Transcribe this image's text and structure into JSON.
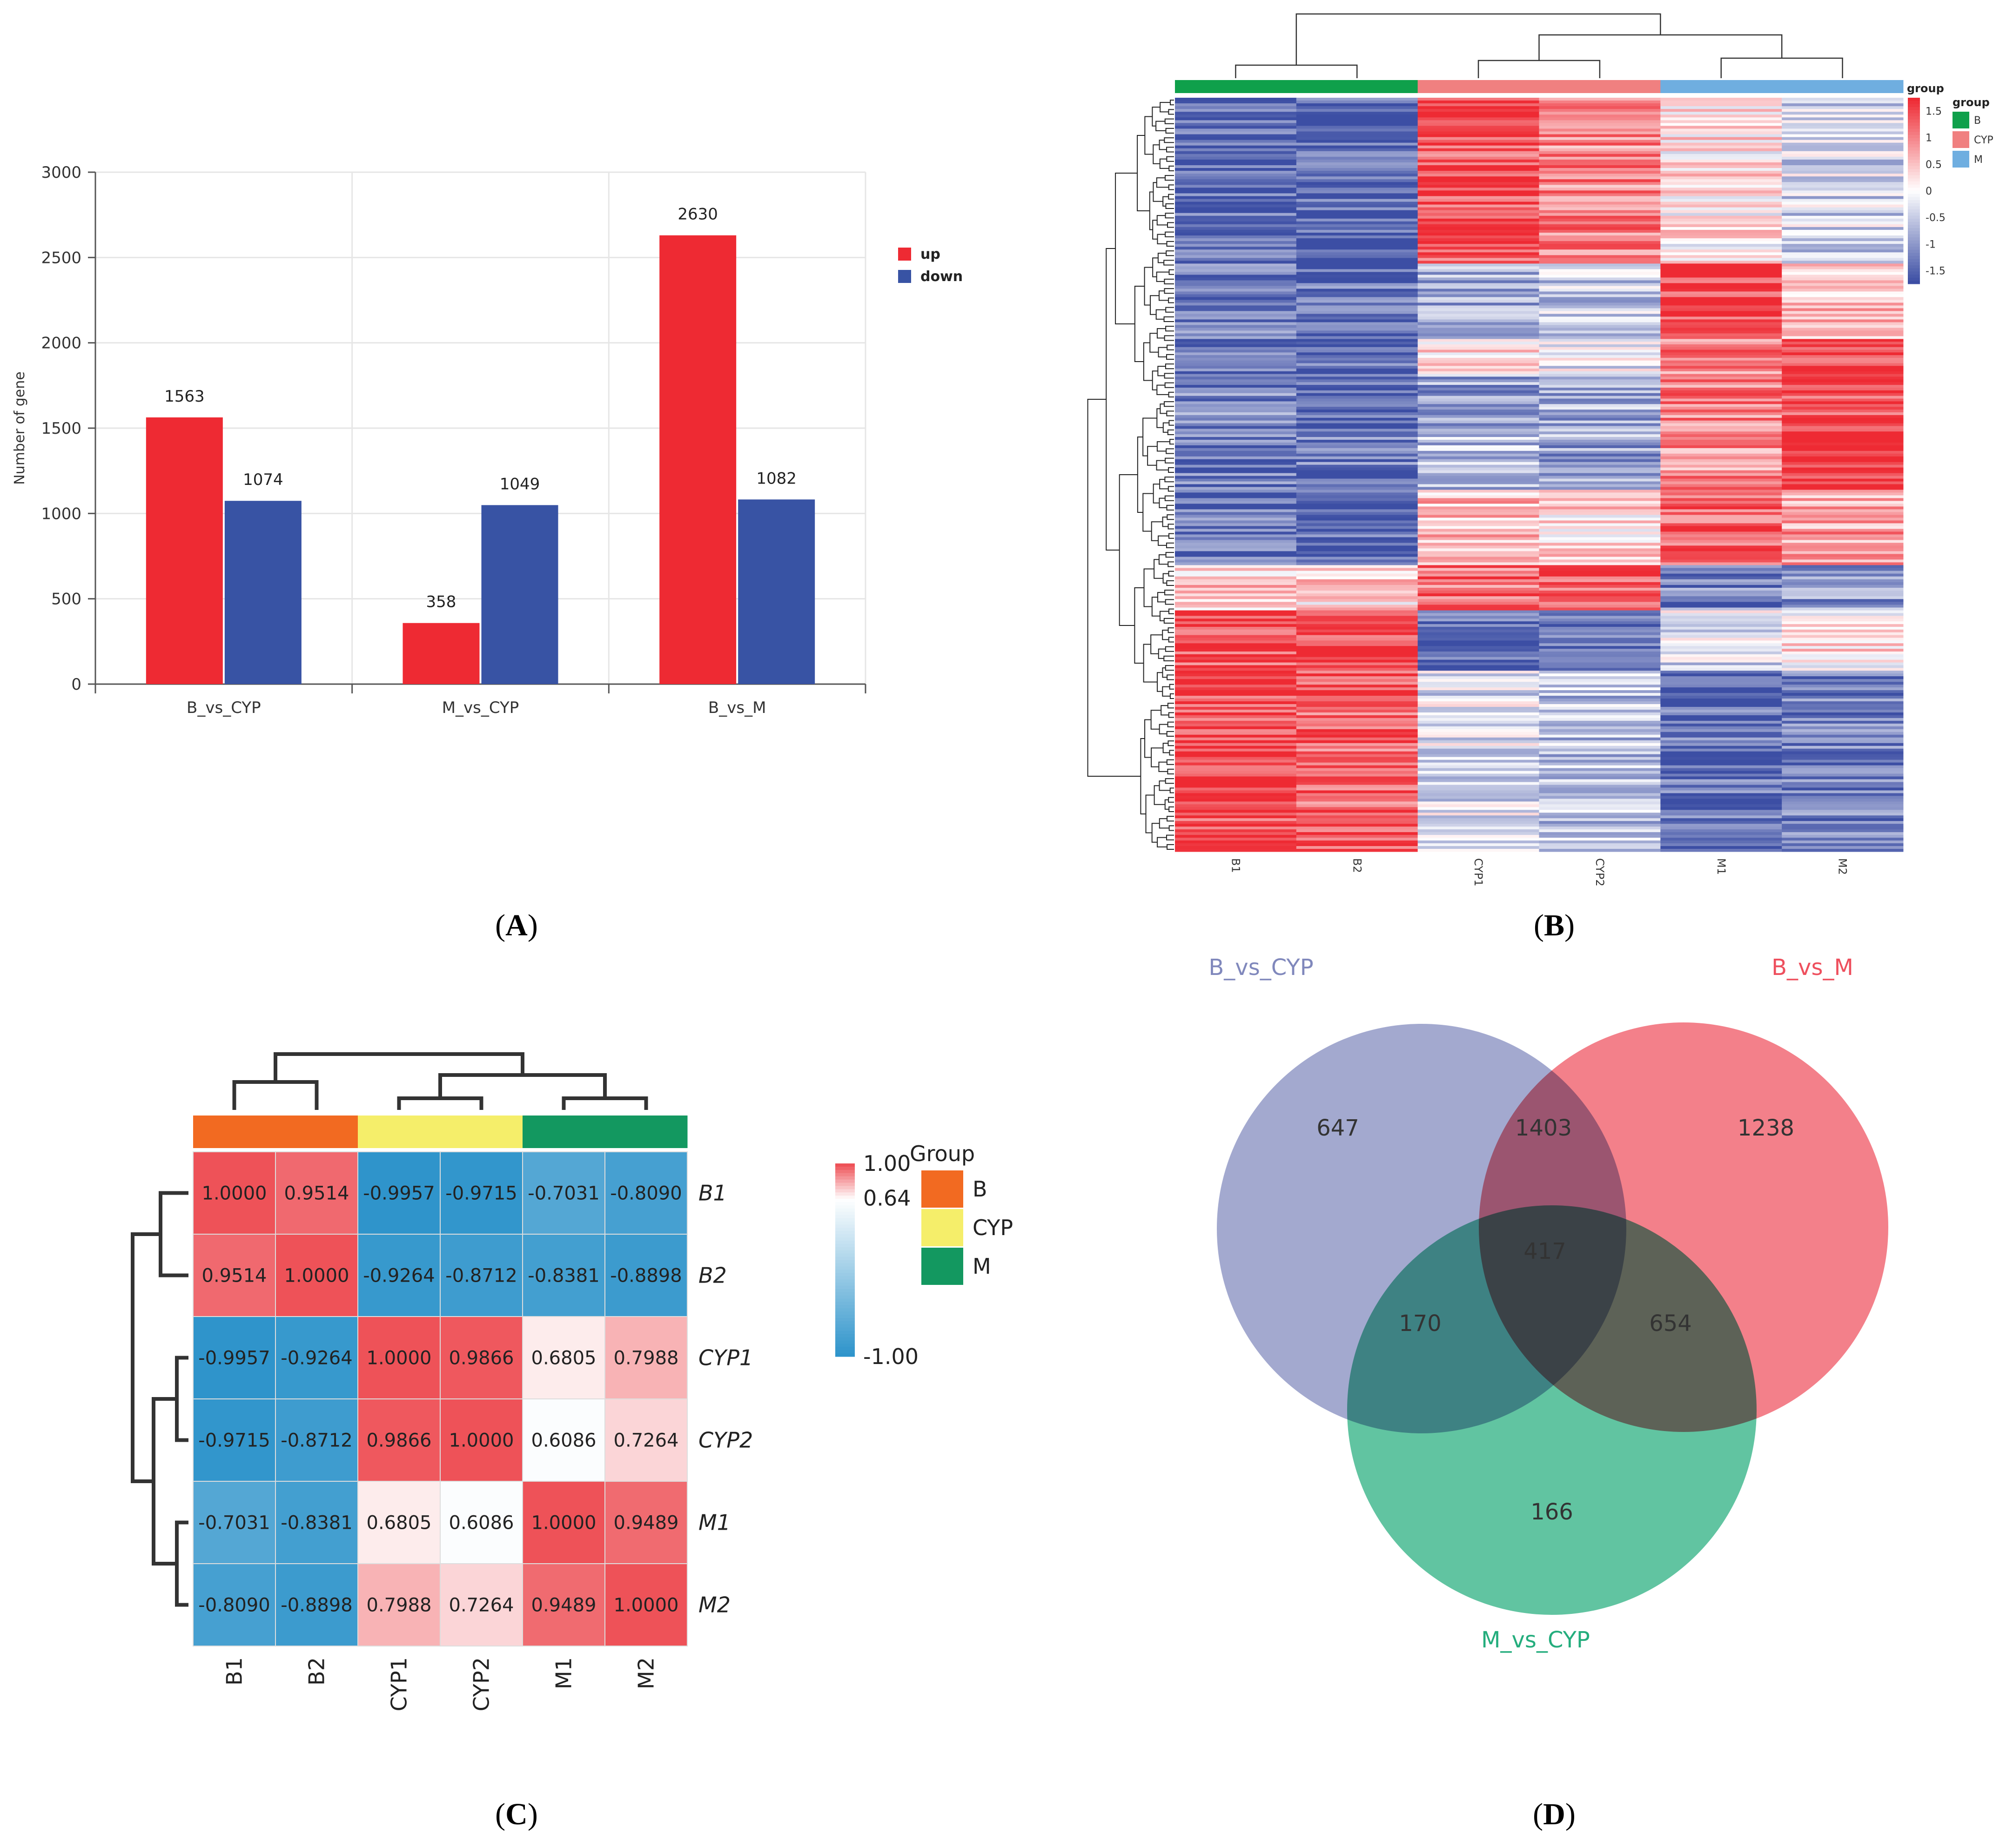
{
  "panel_labels": {
    "a": "A",
    "b": "B",
    "c": "C",
    "d": "D"
  },
  "chart_data": [
    {
      "panel": "A",
      "type": "bar",
      "categories": [
        "B_vs_CYP",
        "M_vs_CYP",
        "B_vs_M"
      ],
      "series": [
        {
          "name": "up",
          "color": "#ee2a33",
          "values": [
            1563,
            358,
            2630
          ]
        },
        {
          "name": "down",
          "color": "#3853a4",
          "values": [
            1074,
            1049,
            1082
          ]
        }
      ],
      "ylabel": "Number of gene",
      "ylim": [
        0,
        3000
      ],
      "yticks": [
        0,
        500,
        1000,
        1500,
        2000,
        2500,
        3000
      ],
      "grid": true,
      "legend": "right"
    },
    {
      "panel": "B",
      "type": "heatmap",
      "columns": [
        "B1",
        "B2",
        "CYP1",
        "CYP2",
        "M1",
        "M2"
      ],
      "column_groups": [
        "B",
        "B",
        "CYP",
        "CYP",
        "M",
        "M"
      ],
      "colorbar": {
        "title": "group",
        "ticks": [
          "1.5",
          "1",
          "0.5",
          "0",
          "-0.5",
          "-1",
          "-1.5"
        ],
        "range": [
          -1.75,
          1.75
        ]
      },
      "group_legend": {
        "title": "group",
        "entries": [
          {
            "name": "B",
            "color": "#0fa04b"
          },
          {
            "name": "CYP",
            "color": "#f08080"
          },
          {
            "name": "M",
            "color": "#6faee0"
          }
        ]
      },
      "row_blocks": [
        {
          "span": 0.22,
          "values": [
            -1.5,
            -1.5,
            1.4,
            1.0,
            0.2,
            -0.4
          ]
        },
        {
          "span": 0.1,
          "values": [
            -1.3,
            -1.4,
            -0.8,
            -0.5,
            1.5,
            0.6
          ]
        },
        {
          "span": 0.05,
          "values": [
            -1.5,
            -1.5,
            0.3,
            -0.2,
            1.0,
            1.6
          ]
        },
        {
          "span": 0.08,
          "values": [
            -1.2,
            -1.4,
            -0.9,
            -0.8,
            1.0,
            1.5
          ]
        },
        {
          "span": 0.07,
          "values": [
            -1.3,
            -1.3,
            -0.6,
            -0.9,
            0.9,
            1.6
          ]
        },
        {
          "span": 0.1,
          "values": [
            -1.4,
            -1.5,
            0.6,
            0.3,
            1.3,
            0.8
          ]
        },
        {
          "span": 0.06,
          "values": [
            0.5,
            0.3,
            1.2,
            1.4,
            -1.2,
            -1.0
          ]
        },
        {
          "span": 0.08,
          "values": [
            1.4,
            1.6,
            -1.5,
            -1.4,
            -0.3,
            0.2
          ]
        },
        {
          "span": 0.24,
          "values": [
            1.5,
            1.3,
            -0.3,
            -0.6,
            -1.4,
            -1.3
          ]
        }
      ]
    },
    {
      "panel": "C",
      "type": "heatmap",
      "rows": [
        "B1",
        "B2",
        "CYP1",
        "CYP2",
        "M1",
        "M2"
      ],
      "columns": [
        "B1",
        "B2",
        "CYP1",
        "CYP2",
        "M1",
        "M2"
      ],
      "column_groups": [
        "B",
        "B",
        "CYP",
        "CYP",
        "M",
        "M"
      ],
      "cell_labels": [
        [
          "1.0000",
          "0.9514",
          "-0.9957",
          "-0.9715",
          "-0.7031",
          "-0.8090"
        ],
        [
          "0.9514",
          "1.0000",
          "-0.9264",
          "-0.8712",
          "-0.8381",
          "-0.8898"
        ],
        [
          "-0.9957",
          "-0.9264",
          "1.0000",
          "0.9866",
          "0.6805",
          "0.7988"
        ],
        [
          "-0.9715",
          "-0.8712",
          "0.9866",
          "1.0000",
          "0.6086",
          "0.7264"
        ],
        [
          "-0.7031",
          "-0.8381",
          "0.6805",
          "0.6086",
          "1.0000",
          "0.9489"
        ],
        [
          "-0.8090",
          "-0.8898",
          "0.7988",
          "0.7264",
          "0.9489",
          "1.0000"
        ]
      ],
      "colorbar_labels": [
        "1.00",
        "0.64",
        "-1.00"
      ],
      "colorbar_range": [
        -1.0,
        1.0
      ],
      "colorbar_mid": 0.64,
      "group_legend": {
        "title": "Group",
        "entries": [
          {
            "name": "B",
            "color": "#f26a21"
          },
          {
            "name": "CYP",
            "color": "#f5ee6a"
          },
          {
            "name": "M",
            "color": "#139860"
          }
        ]
      }
    },
    {
      "panel": "D",
      "type": "venn",
      "sets": [
        {
          "name": "B_vs_CYP",
          "color": "#8088bc"
        },
        {
          "name": "B_vs_M",
          "color": "#ee4f5d"
        },
        {
          "name": "M_vs_CYP",
          "color": "#24ad7d"
        }
      ],
      "regions": [
        {
          "sets": [
            "B_vs_CYP"
          ],
          "value": "647"
        },
        {
          "sets": [
            "B_vs_M"
          ],
          "value": "1238"
        },
        {
          "sets": [
            "M_vs_CYP"
          ],
          "value": "166"
        },
        {
          "sets": [
            "B_vs_CYP",
            "B_vs_M"
          ],
          "value": "1403"
        },
        {
          "sets": [
            "B_vs_CYP",
            "M_vs_CYP"
          ],
          "value": "170"
        },
        {
          "sets": [
            "B_vs_M",
            "M_vs_CYP"
          ],
          "value": "654"
        },
        {
          "sets": [
            "B_vs_CYP",
            "B_vs_M",
            "M_vs_CYP"
          ],
          "value": "417"
        }
      ]
    }
  ]
}
